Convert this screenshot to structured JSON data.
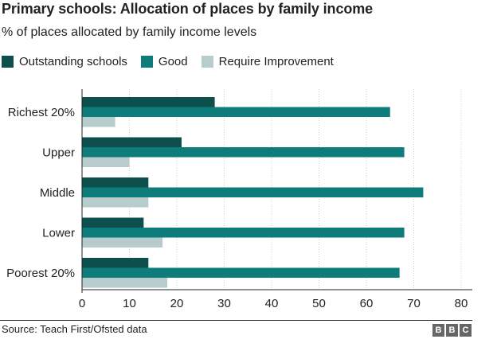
{
  "title": "Primary schools: Allocation of places by family income",
  "subtitle": "% of places allocated by family income levels",
  "source": "Source: Teach First/Ofsted data",
  "logo": [
    "B",
    "B",
    "C"
  ],
  "chart_data": {
    "type": "bar",
    "orientation": "horizontal",
    "title": "Primary schools: Allocation of places by family income",
    "subtitle": "% of places allocated by family income levels",
    "categories": [
      "Richest 20%",
      "Upper",
      "Middle",
      "Lower",
      "Poorest 20%"
    ],
    "series": [
      {
        "name": "Outstanding schools",
        "color": "#0d4f4d",
        "values": [
          28,
          21,
          14,
          13,
          14
        ]
      },
      {
        "name": "Good",
        "color": "#0e7c7a",
        "values": [
          65,
          68,
          72,
          68,
          67
        ]
      },
      {
        "name": "Require Improvement",
        "color": "#b6cccd",
        "values": [
          7,
          10,
          14,
          17,
          18
        ]
      }
    ],
    "xlim": [
      0,
      80
    ],
    "xticks": [
      0,
      10,
      20,
      30,
      40,
      50,
      60,
      70,
      80
    ],
    "grid": true,
    "legend": "top-left"
  }
}
